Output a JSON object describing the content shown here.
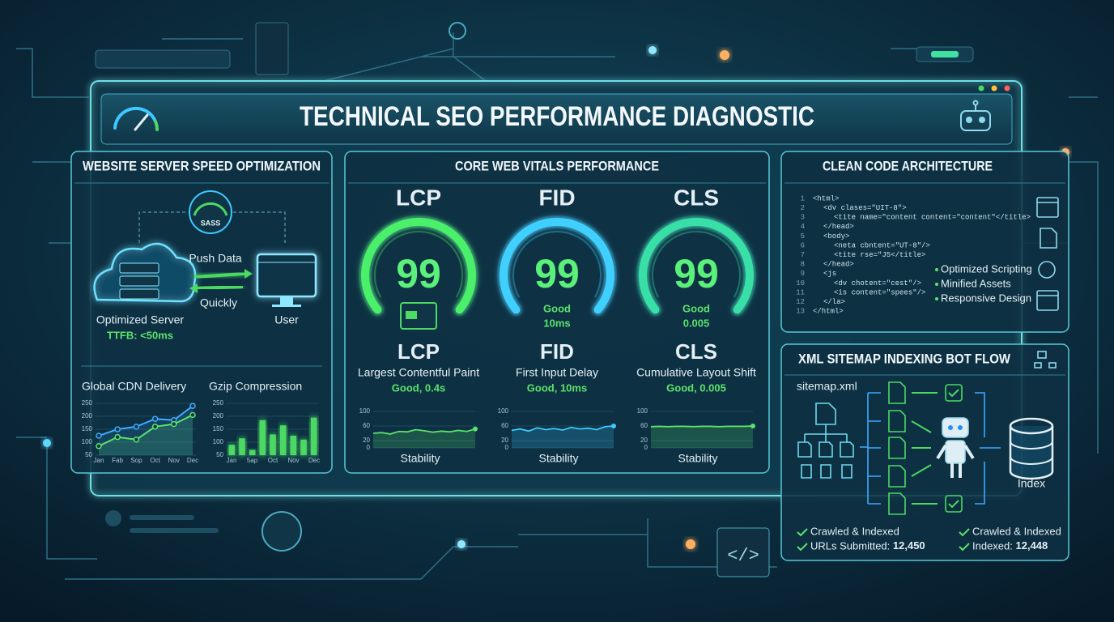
{
  "title": "TECHNICAL SEO PERFORMANCE DIAGNOSTIC",
  "server_panel": {
    "title": "WEBSITE SERVER SPEED OPTIMIZATION",
    "gauge_label": "SASS",
    "push_label": "Push Data",
    "quick_label": "Quickly",
    "server_label": "Optimized Server",
    "ttfb": "TTFB: <50ms",
    "user_label": "User",
    "cdn_chart": {
      "type": "line",
      "title": "Global CDN Delivery",
      "categories": [
        "Jan",
        "Fab",
        "Sop",
        "Oct",
        "Nov",
        "Dec"
      ],
      "series": [
        {
          "color": "#3fa9ff",
          "values": [
            125,
            150,
            160,
            190,
            185,
            240
          ]
        },
        {
          "color": "#5be36a",
          "values": [
            85,
            120,
            110,
            160,
            170,
            205
          ]
        }
      ],
      "ylim": [
        50,
        250
      ],
      "yticks": [
        50,
        100,
        150,
        200,
        250
      ]
    },
    "gzip_chart": {
      "type": "bar",
      "title": "Gzip Compression",
      "xlabels": [
        "Jan",
        "5ap",
        "Oct",
        "Nov",
        "Dec"
      ],
      "values": [
        90,
        115,
        70,
        185,
        130,
        165,
        125,
        110,
        195
      ],
      "color": "#4cd964",
      "ylim": [
        50,
        250
      ],
      "yticks": [
        50,
        100,
        150,
        200,
        250
      ]
    }
  },
  "vitals_panel": {
    "title": "CORE WEB VITALS PERFORMANCE",
    "metrics": [
      {
        "name": "LCP",
        "score": 99,
        "color": "#4cf06a",
        "full_name": "Largest Contentful Paint",
        "summary": "Good, 0.4s",
        "stability": {
          "type": "line",
          "label": "Stability",
          "color": "#5be36a",
          "ylim": [
            0,
            100
          ],
          "yticks": [
            0,
            20,
            60,
            100
          ],
          "values": [
            40,
            42,
            38,
            45,
            44,
            50,
            47,
            43,
            46,
            44,
            48,
            45,
            52
          ]
        }
      },
      {
        "name": "FID",
        "score": 99,
        "color": "#3fd0ff",
        "gauge_status": "Good",
        "gauge_detail": "10ms",
        "full_name": "First Input Delay",
        "summary": "Good, 10ms",
        "stability": {
          "type": "line",
          "label": "Stability",
          "color": "#3fc8ff",
          "ylim": [
            0,
            100
          ],
          "yticks": [
            0,
            20,
            60,
            100
          ],
          "values": [
            48,
            52,
            46,
            55,
            50,
            53,
            49,
            56,
            52,
            54,
            50,
            58,
            60
          ]
        }
      },
      {
        "name": "CLS",
        "score": 99,
        "color": "#39e0a8",
        "gauge_status": "Good",
        "gauge_detail": "0.005",
        "full_name": "Cumulative Layout Shift",
        "summary": "Good, 0.005",
        "stability": {
          "type": "line",
          "label": "Stability",
          "color": "#5be36a",
          "ylim": [
            0,
            100
          ],
          "yticks": [
            0,
            20,
            60,
            100
          ],
          "values": [
            58,
            59,
            58,
            59,
            59,
            58,
            59,
            59,
            58,
            59,
            59,
            59,
            60
          ]
        }
      }
    ]
  },
  "code_panel": {
    "title": "CLEAN CODE ARCHITECTURE",
    "lines": [
      {
        "num": 1,
        "code": "<html>"
      },
      {
        "num": 2,
        "code": "<dv clases=\"UIT-8\">"
      },
      {
        "num": 3,
        "code": "<tite name=\"content content=\"content\"</title>"
      },
      {
        "num": 4,
        "code": "</head>"
      },
      {
        "num": 5,
        "code": "<body>"
      },
      {
        "num": 6,
        "code": "<neta cbntent=\"UT-8\"/>"
      },
      {
        "num": 7,
        "code": "<tite rse=\"J5</title>"
      },
      {
        "num": 8,
        "code": "</head>"
      },
      {
        "num": 9,
        "code": "<js"
      },
      {
        "num": 10,
        "code": "<dv chotent=\"cest\"/>"
      },
      {
        "num": 11,
        "code": "<is content=\"spees\"/>"
      },
      {
        "num": 12,
        "code": "</la>"
      },
      {
        "num": 13,
        "code": "</html>"
      }
    ],
    "features": [
      "Optimized Scripting",
      "Minified Assets",
      "Responsive Design"
    ]
  },
  "sitemap_panel": {
    "title": "XML SITEMAP INDEXING BOT FLOW",
    "source": "sitemap.xml",
    "target": "Index",
    "stats_left": [
      {
        "label": "Crawled & Indexed"
      },
      {
        "label": "URLs Submitted:",
        "value": "12,450"
      }
    ],
    "stats_right": [
      {
        "label": "Crawled & Indexed"
      },
      {
        "label": "Indexed:",
        "value": "12,448"
      }
    ]
  }
}
